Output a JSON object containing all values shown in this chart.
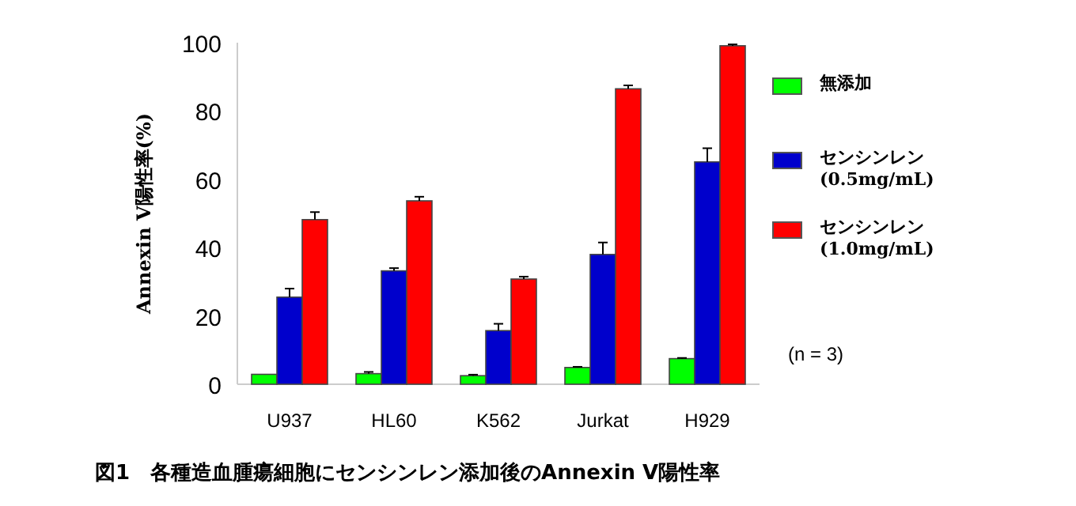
{
  "chart_data": {
    "type": "bar",
    "title": "図1　各種造血腫瘍細胞にセンシンレン添加後のAnnexin V陽性率",
    "ylabel": "Annexin V陽性率(%)",
    "annotations": [
      "(n = 3)"
    ],
    "categories": [
      "U937",
      "HL60",
      "K562",
      "Jurkat",
      "H929"
    ],
    "series": [
      {
        "name": "無添加",
        "color": "#00ff00",
        "values": [
          2.9,
          3.1,
          2.5,
          4.9,
          7.5
        ],
        "errors": [
          null,
          0.5,
          0.3,
          0.2,
          0.2
        ]
      },
      {
        "name": "センシンレン (0.5mg/mL)",
        "color": "#0000cc",
        "values": [
          25.5,
          33.2,
          15.7,
          38,
          65.1
        ],
        "errors": [
          2.5,
          0.8,
          2,
          3.5,
          4
        ]
      },
      {
        "name": "センシンレン (1.0mg/mL)",
        "color": "#ff0000",
        "values": [
          48.2,
          53.7,
          30.8,
          86.5,
          99.1
        ],
        "errors": [
          2.2,
          1.2,
          0.7,
          1,
          0.4
        ]
      }
    ],
    "ylim": [
      0,
      100
    ],
    "yticks": [
      0,
      20,
      40,
      60,
      80,
      100
    ],
    "legend": "right"
  }
}
